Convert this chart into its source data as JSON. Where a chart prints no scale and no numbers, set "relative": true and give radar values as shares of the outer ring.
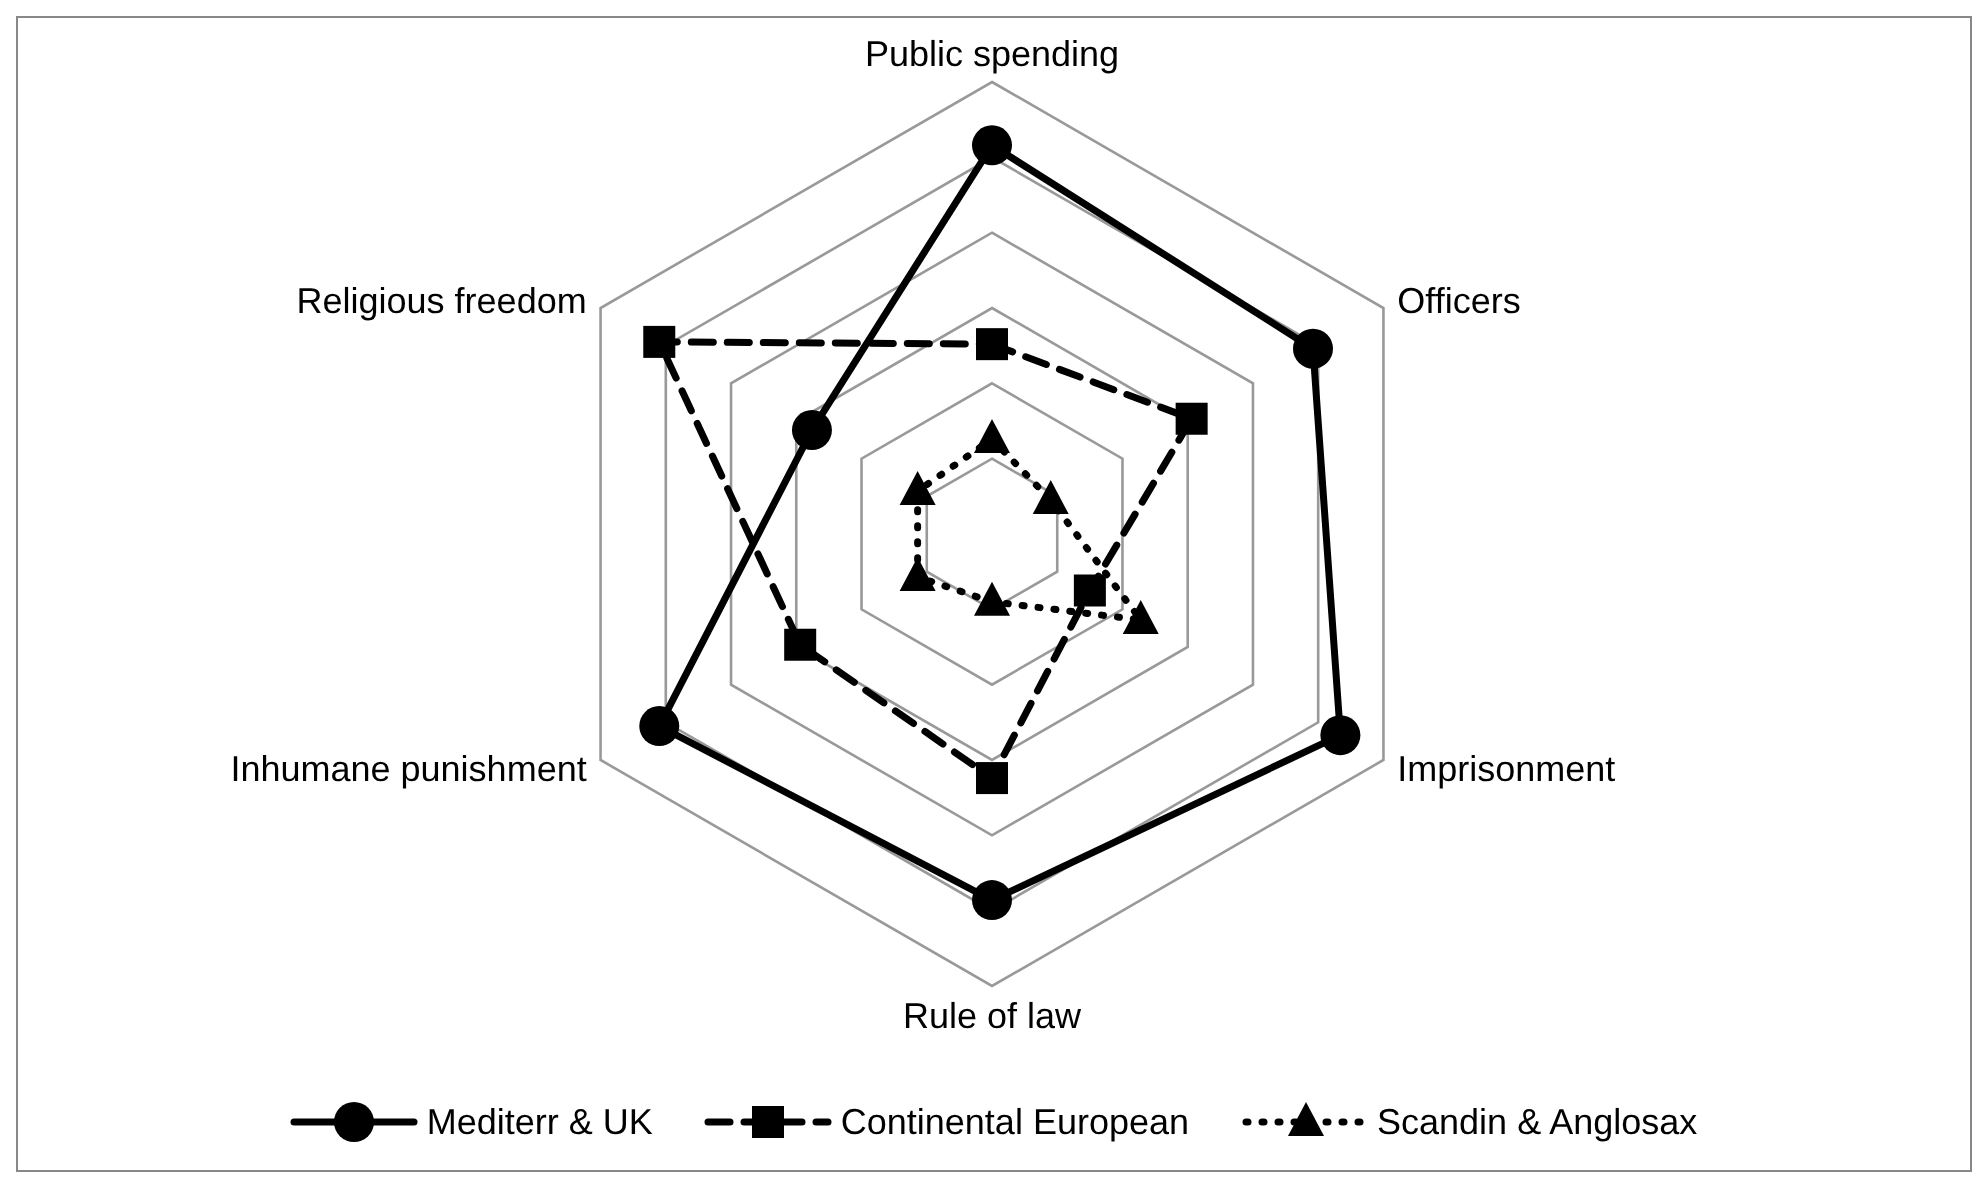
{
  "chart_data": {
    "type": "radar",
    "relative": true,
    "categories": [
      "Public spending",
      "Officers",
      "Imprisonment",
      "Rule of law",
      "Inhumane punishment",
      "Religious freedom"
    ],
    "series": [
      {
        "name": "Mediterr & UK",
        "color": "#000000",
        "marker": "circle",
        "line_style": "solid",
        "values": [
          0.86,
          0.82,
          0.89,
          0.81,
          0.85,
          0.46
        ]
      },
      {
        "name": "Continental European",
        "color": "#000000",
        "marker": "square",
        "line_style": "dashed",
        "values": [
          0.42,
          0.51,
          0.25,
          0.54,
          0.49,
          0.85
        ]
      },
      {
        "name": "Scandin & Anglosax",
        "color": "#000000",
        "marker": "triangle",
        "line_style": "dotted",
        "values": [
          0.21,
          0.15,
          0.38,
          0.15,
          0.19,
          0.19
        ]
      }
    ],
    "grid": true,
    "legend": "bottom"
  }
}
